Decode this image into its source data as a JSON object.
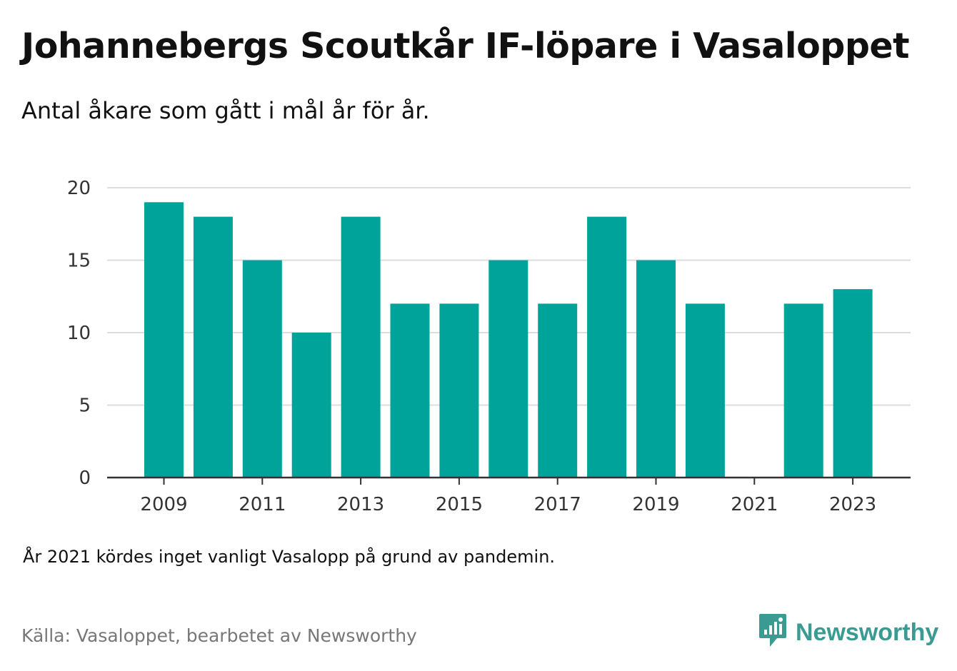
{
  "title": "Johannebergs Scoutkår IF-löpare i Vasaloppet",
  "subtitle": "Antal åkare som gått i mål år för år.",
  "note": "År 2021 kördes inget vanligt Vasalopp på grund av pandemin.",
  "source": "Källa: Vasaloppet, bearbetet av Newsworthy",
  "brand": {
    "name": "Newsworthy",
    "icon": "newsworthy-logo-icon",
    "color": "#3a9b93"
  },
  "colors": {
    "bar": "#00a39a",
    "grid": "#dddddd",
    "axis": "#333333"
  },
  "chart_data": {
    "type": "bar",
    "categories": [
      "2009",
      "2010",
      "2011",
      "2012",
      "2013",
      "2014",
      "2015",
      "2016",
      "2017",
      "2018",
      "2019",
      "2020",
      "2021",
      "2022",
      "2023"
    ],
    "values": [
      19,
      18,
      15,
      10,
      18,
      12,
      12,
      15,
      12,
      18,
      15,
      12,
      null,
      12,
      13
    ],
    "x_tick_labels": [
      "2009",
      "2011",
      "2013",
      "2015",
      "2017",
      "2019",
      "2021",
      "2023"
    ],
    "y_ticks": [
      0,
      5,
      10,
      15,
      20
    ],
    "ylim": [
      0,
      20
    ],
    "xlabel": "",
    "ylabel": "",
    "grid": true,
    "legend": "none"
  }
}
